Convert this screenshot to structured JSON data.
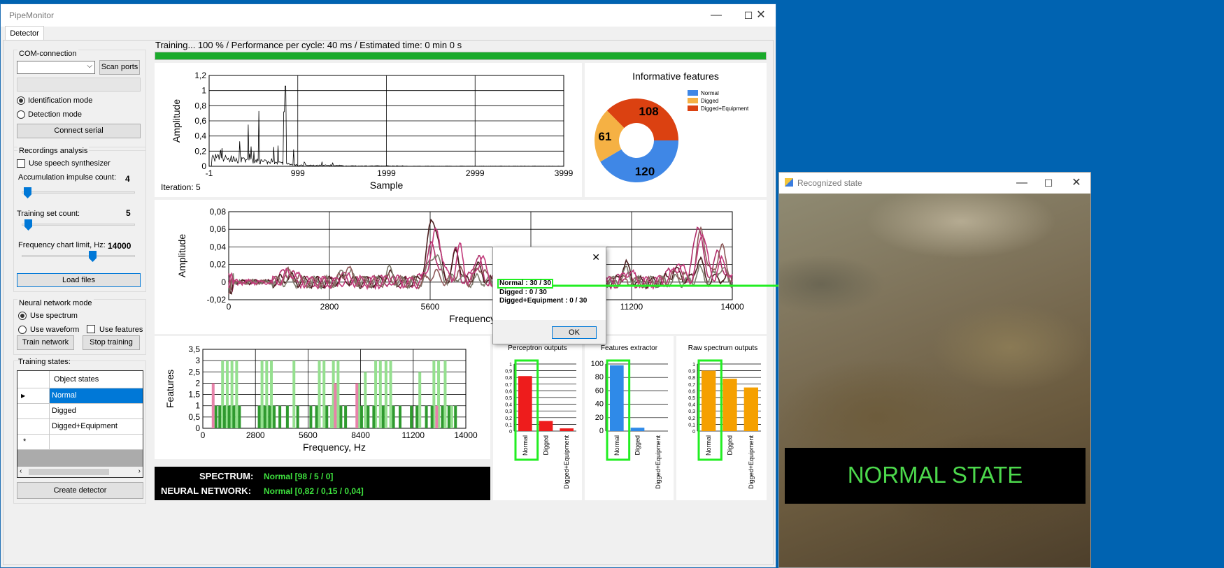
{
  "main_window": {
    "title": "PipeMonitor",
    "tab": "Detector",
    "controls": {
      "minimize": "—",
      "maximize": "☐",
      "close": "✕"
    }
  },
  "com": {
    "group_title": "COM-connection",
    "port_value": "",
    "scan_label": "Scan ports",
    "identification_label": "Identification mode",
    "detection_label": "Detection mode",
    "selected_mode": "identification",
    "connect_label": "Connect serial"
  },
  "recordings": {
    "group_title": "Recordings analysis",
    "speech_label": "Use speech synthesizer",
    "speech_checked": false,
    "accumulation_label": "Accumulation impulse count:",
    "accumulation_value": "4",
    "training_set_label": "Training set count:",
    "training_set_value": "5",
    "freq_limit_label": "Frequency chart limit, Hz:",
    "freq_limit_value": "14000",
    "load_label": "Load files"
  },
  "neural": {
    "group_title": "Neural network mode",
    "spectrum_label": "Use spectrum",
    "waveform_label": "Use waveform",
    "features_label": "Use features",
    "selected_mode": "spectrum",
    "features_checked": false,
    "train_label": "Train network",
    "stop_label": "Stop training"
  },
  "training_states": {
    "label": "Training states:",
    "column_header": "Object states",
    "rows": [
      "Normal",
      "Digged",
      "Digged+Equipment"
    ],
    "selected_row": 0,
    "create_label": "Create detector"
  },
  "status": {
    "text": "Training... 100 % / Performance per cycle: 40 ms / Estimated time: 0 min 0 s",
    "progress": 100,
    "progress_color": "#1aaa2b"
  },
  "waveform": {
    "iteration_label": "Iteration: 5",
    "chart_data": {
      "type": "line",
      "xlabel": "Sample",
      "ylabel": "Amplitude",
      "x_ticks": [
        "-1",
        "999",
        "1999",
        "2999",
        "3999"
      ],
      "y_ticks": [
        "0",
        "0,2",
        "0,4",
        "0,6",
        "0,8",
        "1",
        "1,2"
      ],
      "xlim": [
        -1,
        3999
      ],
      "ylim": [
        0,
        1.2
      ],
      "peak_x": 860,
      "peak_y": 1.06,
      "grid": true
    }
  },
  "informative_features": {
    "chart_data": {
      "type": "pie",
      "title": "Informative features",
      "labels": [
        "Normal",
        "Digged",
        "Digged+Equipment"
      ],
      "values": [
        120,
        61,
        108
      ],
      "colors": [
        "#3f87e6",
        "#f5b144",
        "#db4111"
      ],
      "legend": "top-right"
    }
  },
  "spectrum": {
    "chart_data": {
      "type": "line",
      "xlabel": "Frequency, Hz",
      "ylabel": "Amplitude",
      "x_ticks": [
        "0",
        "2800",
        "5600",
        "8400",
        "11200",
        "14000"
      ],
      "y_ticks": [
        "-0,02",
        "0",
        "0,02",
        "0,04",
        "0,06",
        "0,08"
      ],
      "xlim": [
        0,
        14000
      ],
      "ylim": [
        -0.02,
        0.08
      ],
      "series_colors": [
        "#b0306b",
        "#4b1f1f",
        "#7d7a6c",
        "#8e5a5a",
        "#c23a7b"
      ],
      "peaks": [
        [
          1600,
          0.012
        ],
        [
          3200,
          0.016
        ],
        [
          4400,
          0.013
        ],
        [
          5650,
          0.072
        ],
        [
          6300,
          0.04
        ],
        [
          6900,
          0.028
        ],
        [
          8200,
          0.022
        ],
        [
          9000,
          0.018
        ],
        [
          9900,
          0.022
        ],
        [
          11000,
          0.02
        ],
        [
          12400,
          0.018
        ],
        [
          13050,
          0.07
        ],
        [
          13600,
          0.038
        ]
      ],
      "grid": true
    }
  },
  "features_chart": {
    "chart_data": {
      "type": "bar",
      "xlabel": "Frequency, Hz",
      "ylabel": "Features",
      "x_ticks": [
        "0",
        "2800",
        "5600",
        "8400",
        "11200",
        "14000"
      ],
      "y_ticks": [
        "0",
        "0,5",
        "1",
        "1,5",
        "2",
        "2,5",
        "3",
        "3,5"
      ],
      "xlim": [
        0,
        14000
      ],
      "ylim": [
        0,
        3.5
      ],
      "colors": {
        "light": "#95e08f",
        "dark": "#2f9a2f",
        "pink": "#e782aa"
      },
      "bars_light": [
        [
          1050,
          3
        ],
        [
          1300,
          3
        ],
        [
          1550,
          3
        ],
        [
          1800,
          3
        ],
        [
          3150,
          3
        ],
        [
          3400,
          3
        ],
        [
          3650,
          3
        ],
        [
          4850,
          3
        ],
        [
          6200,
          3
        ],
        [
          6450,
          3
        ],
        [
          6950,
          3
        ],
        [
          7200,
          3
        ],
        [
          9200,
          3
        ],
        [
          9450,
          3
        ],
        [
          9750,
          3
        ],
        [
          10000,
          3
        ],
        [
          12300,
          3
        ],
        [
          12550,
          3
        ],
        [
          12900,
          3
        ],
        [
          7050,
          2
        ],
        [
          6850,
          1
        ],
        [
          8300,
          2
        ],
        [
          8650,
          2.5
        ],
        [
          11550,
          2.5
        ],
        [
          13250,
          1
        ]
      ],
      "bars_dark": [
        [
          700,
          1
        ],
        [
          900,
          1
        ],
        [
          1150,
          1
        ],
        [
          1400,
          1
        ],
        [
          1650,
          1
        ],
        [
          1950,
          1
        ],
        [
          3000,
          1
        ],
        [
          3300,
          1
        ],
        [
          3550,
          1
        ],
        [
          3800,
          1
        ],
        [
          4100,
          1
        ],
        [
          4500,
          1
        ],
        [
          5050,
          1
        ],
        [
          5750,
          1
        ],
        [
          6050,
          1
        ],
        [
          6600,
          1
        ],
        [
          7350,
          1
        ],
        [
          7600,
          1
        ],
        [
          8450,
          1
        ],
        [
          8800,
          1
        ],
        [
          9100,
          1
        ],
        [
          9600,
          1
        ],
        [
          10150,
          1
        ],
        [
          10500,
          1
        ],
        [
          11100,
          1
        ],
        [
          11400,
          1
        ],
        [
          11900,
          1
        ],
        [
          12200,
          1
        ],
        [
          12750,
          1
        ],
        [
          13100,
          1
        ],
        [
          13450,
          1
        ]
      ],
      "bars_pink": [
        [
          550,
          2
        ],
        [
          7050,
          2
        ],
        [
          8200,
          2
        ],
        [
          12450,
          1
        ]
      ]
    }
  },
  "dialog": {
    "lines": [
      "Normal : 30 / 30",
      "Digged : 0 / 30",
      "Digged+Equipment : 0 / 30"
    ],
    "ok_label": "OK",
    "close_glyph": "✕"
  },
  "outputs": [
    {
      "chart_data": {
        "type": "bar",
        "title": "Perceptron outputs",
        "categories": [
          "Normal",
          "Digged",
          "Digged+Equipment"
        ],
        "values": [
          0.82,
          0.15,
          0.04
        ],
        "y_ticks": [
          "0",
          "0,1",
          "0,2",
          "0,3",
          "0,4",
          "0,5",
          "0,6",
          "0,7",
          "0,8",
          "0,9",
          "1"
        ],
        "ylim": [
          0,
          1
        ],
        "color": "#ee1c1c"
      }
    },
    {
      "chart_data": {
        "type": "bar",
        "title": "Features extractor",
        "categories": [
          "Normal",
          "Digged",
          "Digged+Equipment"
        ],
        "values": [
          98,
          5,
          0
        ],
        "y_ticks": [
          "0",
          "20",
          "40",
          "60",
          "80",
          "100"
        ],
        "ylim": [
          0,
          100
        ],
        "color": "#2f8ae8"
      }
    },
    {
      "chart_data": {
        "type": "bar",
        "title": "Raw spectrum outputs",
        "categories": [
          "Normal",
          "Digged",
          "Digged+Equipment"
        ],
        "values": [
          0.9,
          0.78,
          0.65
        ],
        "y_ticks": [
          "0",
          "0,1",
          "0,2",
          "0,3",
          "0,4",
          "0,5",
          "0,6",
          "0,7",
          "0,8",
          "0,9",
          "1"
        ],
        "ylim": [
          0,
          1
        ],
        "color": "#f5a000"
      }
    }
  ],
  "results": {
    "spectrum_label": "SPECTRUM:",
    "spectrum_value": "Normal [98 / 5 / 0]",
    "nn_label": "NEURAL NETWORK:",
    "nn_value": "Normal [0,82 / 0,15 / 0,04]"
  },
  "recognized_window": {
    "title": "Recognized state",
    "state_text": "NORMAL STATE",
    "state_color": "#4cd84c"
  },
  "highlight_color": "#22ee22"
}
